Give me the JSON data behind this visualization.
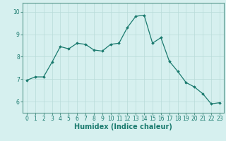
{
  "x": [
    0,
    1,
    2,
    3,
    4,
    5,
    6,
    7,
    8,
    9,
    10,
    11,
    12,
    13,
    14,
    15,
    16,
    17,
    18,
    19,
    20,
    21,
    22,
    23
  ],
  "y": [
    6.95,
    7.1,
    7.1,
    7.75,
    8.45,
    8.35,
    8.6,
    8.55,
    8.3,
    8.25,
    8.55,
    8.6,
    9.3,
    9.8,
    9.85,
    8.6,
    8.85,
    7.8,
    7.35,
    6.85,
    6.65,
    6.35,
    5.9,
    5.95
  ],
  "line_color": "#1a7a6e",
  "marker": "D",
  "marker_size": 1.8,
  "bg_color": "#d6f0ef",
  "grid_color": "#b8dbd9",
  "xlabel": "Humidex (Indice chaleur)",
  "xlim": [
    -0.5,
    23.5
  ],
  "ylim": [
    5.5,
    10.4
  ],
  "yticks": [
    6,
    7,
    8,
    9,
    10
  ],
  "xticks": [
    0,
    1,
    2,
    3,
    4,
    5,
    6,
    7,
    8,
    9,
    10,
    11,
    12,
    13,
    14,
    15,
    16,
    17,
    18,
    19,
    20,
    21,
    22,
    23
  ],
  "tick_labelsize": 5.5,
  "xlabel_fontsize": 7,
  "xlabel_fontweight": "bold",
  "line_width": 0.9,
  "spine_color": "#5a9a90"
}
